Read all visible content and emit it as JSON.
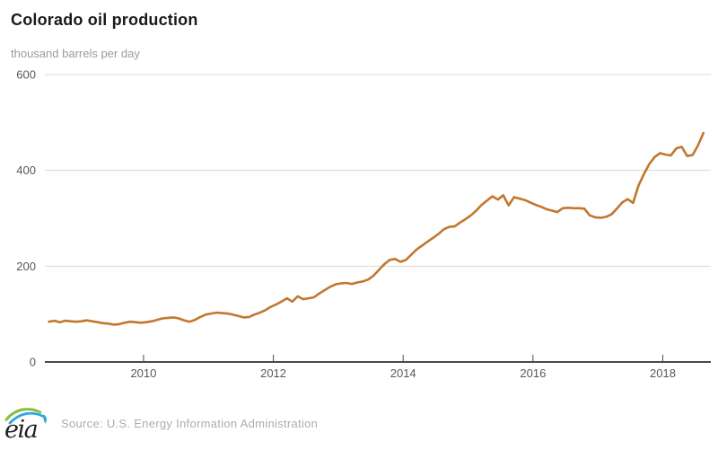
{
  "header": {
    "title": "Colorado oil production",
    "subtitle": "thousand barrels per day"
  },
  "footer": {
    "logo_text": "eia",
    "source": "Source: U.S. Energy Information Administration"
  },
  "colors": {
    "line": "#C1772F",
    "grid": "#D8D8D8",
    "axis": "#4A4A4A",
    "tick_label": "#58585A",
    "title": "#1A1A1A",
    "subtitle": "#9B9B9B",
    "source": "#ADADAD",
    "logo_green": "#86BC40",
    "logo_yellow": "#F2D13E",
    "logo_blue": "#2BA8E0",
    "logo_text_color": "#231F20"
  },
  "chart_data": {
    "type": "line",
    "title": "Colorado oil production",
    "ylabel": "thousand barrels per day",
    "unit": "thousand barrels per day",
    "frequency": "monthly",
    "start_month": "2008-07",
    "end_month": "2018-08",
    "x_start": 2008.542,
    "x_step_years": 0.0833333,
    "xlim": [
      2008.48,
      2018.74
    ],
    "ylim": [
      0,
      600
    ],
    "xticks": [
      "2010",
      "2012",
      "2014",
      "2016",
      "2018"
    ],
    "xtick_values": [
      2010,
      2012,
      2014,
      2016,
      2018
    ],
    "yticks": [
      "0",
      "200",
      "400",
      "600"
    ],
    "ytick_values": [
      0,
      200,
      400,
      600
    ],
    "grid": "horizontal",
    "legend": "none",
    "series": [
      {
        "name": "Colorado oil production",
        "values": [
          84,
          86,
          83,
          86,
          85,
          84,
          85,
          87,
          85,
          83,
          81,
          80,
          78,
          79,
          82,
          84,
          83,
          82,
          83,
          85,
          88,
          91,
          92,
          93,
          91,
          87,
          84,
          88,
          94,
          99,
          101,
          103,
          102,
          101,
          99,
          96,
          93,
          94,
          99,
          103,
          108,
          115,
          120,
          126,
          133,
          126,
          137,
          131,
          133,
          135,
          143,
          150,
          157,
          162,
          164,
          165,
          163,
          166,
          168,
          172,
          180,
          192,
          204,
          213,
          215,
          209,
          213,
          224,
          235,
          243,
          251,
          259,
          267,
          277,
          282,
          283,
          291,
          298,
          306,
          316,
          328,
          337,
          346,
          339,
          348,
          327,
          344,
          341,
          338,
          333,
          328,
          324,
          319,
          316,
          313,
          321,
          322,
          321,
          321,
          320,
          306,
          302,
          301,
          303,
          308,
          320,
          333,
          340,
          332,
          368,
          392,
          413,
          428,
          436,
          433,
          431,
          446,
          449,
          430,
          432,
          452,
          478
        ]
      }
    ]
  }
}
